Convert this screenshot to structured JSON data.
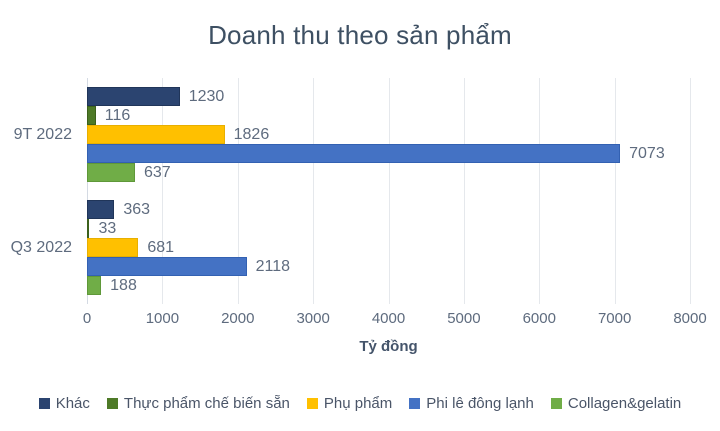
{
  "chart_data": {
    "type": "bar",
    "orientation": "horizontal",
    "title": "Doanh thu theo sản phẩm",
    "xlabel": "Tỷ đồng",
    "categories": [
      "9T 2022",
      "Q3 2022"
    ],
    "series": [
      {
        "name": "Khác",
        "color": "#2B4470",
        "border": "#203559",
        "values": [
          1230,
          363
        ]
      },
      {
        "name": "Thực phẩm chế biến sẵn",
        "color": "#4E7A27",
        "border": "#3C611C",
        "values": [
          116,
          33
        ]
      },
      {
        "name": "Phụ phẩm",
        "color": "#FFC000",
        "border": "#E8AF00",
        "values": [
          1826,
          681
        ]
      },
      {
        "name": "Phi lê đông lạnh",
        "color": "#4472C4",
        "border": "#3361B2",
        "values": [
          7073,
          2118
        ]
      },
      {
        "name": "Collagen&gelatin",
        "color": "#70AD47",
        "border": "#5F9839",
        "values": [
          637,
          188
        ]
      }
    ],
    "xlim": [
      0,
      8000
    ],
    "xticks": [
      0,
      1000,
      2000,
      3000,
      4000,
      5000,
      6000,
      7000,
      8000
    ],
    "grid": true,
    "legend_position": "bottom"
  },
  "colors": {
    "title": "#3E5063",
    "value_label": "#5E6B7E",
    "tick_label": "#5E6B7E",
    "category_label": "#5E6B7E",
    "axis_title": "#44546A",
    "legend_text": "#4A5568",
    "gridline": "#E5E8EC",
    "axis_line": "#D4DAE3"
  }
}
